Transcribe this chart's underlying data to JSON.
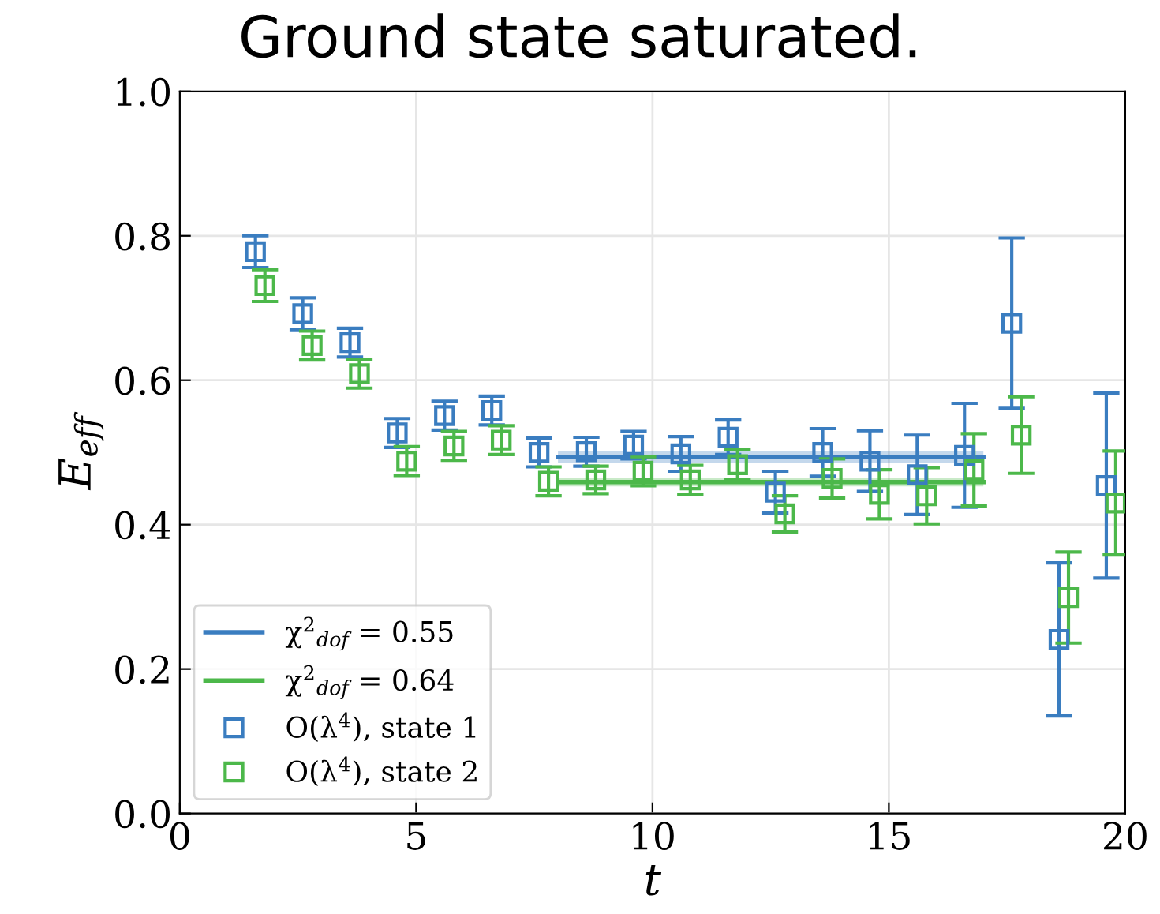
{
  "chart_data": {
    "type": "scatter",
    "title": "Ground state saturated.",
    "xlabel": "t",
    "ylabel": "E$_{eff}$",
    "xlim": [
      0,
      20
    ],
    "ylim": [
      0.0,
      1.0
    ],
    "xticks": [
      0,
      5,
      10,
      15,
      20
    ],
    "yticks": [
      {
        "value": 0.0,
        "label": "0.0"
      },
      {
        "value": 0.2,
        "label": "0.2"
      },
      {
        "value": 0.4,
        "label": "0.4"
      },
      {
        "value": 0.6,
        "label": "0.6"
      },
      {
        "value": 0.8,
        "label": "0.8"
      },
      {
        "value": 1.0,
        "label": "1.0"
      }
    ],
    "grid": true,
    "legend": "bottom left",
    "marker": "square",
    "series": [
      {
        "name": "χ$^{2}$$_{dof}$ = 0.55",
        "type": "line",
        "color": "#3a7dc0",
        "x": [
          8,
          17
        ],
        "values": [
          0.494,
          0.494
        ],
        "lower": [
          0.486,
          0.486
        ],
        "upper": [
          0.502,
          0.502
        ],
        "marker": "none",
        "line_style": "solid"
      },
      {
        "name": "χ$^{2}$$_{dof}$ = 0.64",
        "type": "line",
        "color": "#4cb84a",
        "x": [
          8,
          17
        ],
        "values": [
          0.459,
          0.459
        ],
        "lower": [
          0.453,
          0.453
        ],
        "upper": [
          0.465,
          0.465
        ],
        "marker": "none",
        "line_style": "solid"
      },
      {
        "name": "O(λ$^{4}$), state 1",
        "color": "#3a7dc0",
        "x": [
          1.6,
          2.6,
          3.6,
          4.6,
          5.6,
          6.6,
          7.6,
          8.6,
          9.6,
          10.6,
          11.6,
          12.6,
          13.6,
          14.6,
          15.6,
          16.6,
          17.6,
          18.6,
          19.6
        ],
        "values": [
          0.778,
          0.692,
          0.652,
          0.527,
          0.551,
          0.558,
          0.5,
          0.501,
          0.51,
          0.498,
          0.521,
          0.445,
          0.5,
          0.488,
          0.469,
          0.496,
          0.679,
          0.241,
          0.454
        ],
        "errors": [
          0.022,
          0.022,
          0.02,
          0.02,
          0.02,
          0.02,
          0.02,
          0.02,
          0.019,
          0.024,
          0.024,
          0.029,
          0.033,
          0.042,
          0.055,
          0.072,
          0.118,
          0.106,
          0.128
        ]
      },
      {
        "name": "O(λ$^{4}$), state 2",
        "color": "#4cb84a",
        "x": [
          1.8,
          2.8,
          3.8,
          4.8,
          5.8,
          6.8,
          7.8,
          8.8,
          9.8,
          10.8,
          11.8,
          12.8,
          13.8,
          14.8,
          15.8,
          16.8,
          17.8,
          18.8,
          19.8
        ],
        "values": [
          0.731,
          0.648,
          0.609,
          0.488,
          0.509,
          0.517,
          0.46,
          0.462,
          0.474,
          0.462,
          0.483,
          0.415,
          0.464,
          0.442,
          0.44,
          0.476,
          0.524,
          0.299,
          0.43
        ],
        "errors": [
          0.022,
          0.02,
          0.02,
          0.02,
          0.02,
          0.02,
          0.02,
          0.019,
          0.02,
          0.02,
          0.021,
          0.025,
          0.027,
          0.034,
          0.039,
          0.05,
          0.053,
          0.063,
          0.072
        ]
      }
    ]
  }
}
